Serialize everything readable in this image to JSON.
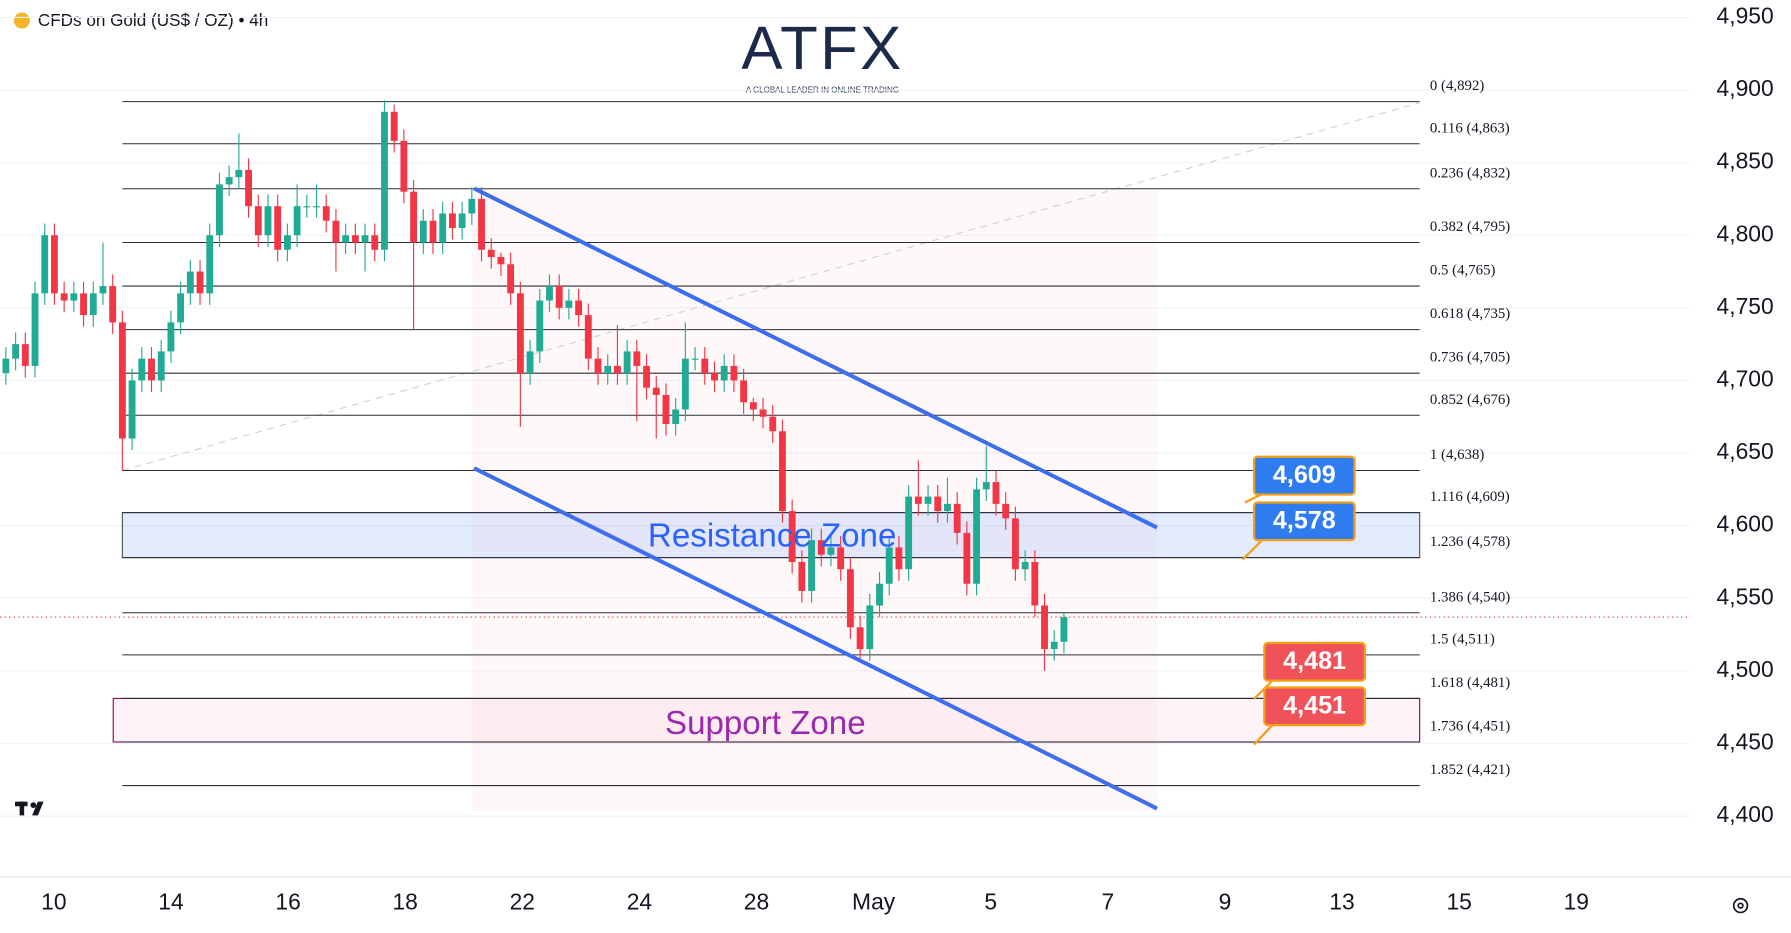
{
  "chart_data": {
    "type": "candlestick",
    "title": "CFDs on Gold (US$ / OZ) • 4h",
    "logo": "ATFX",
    "logo_tagline": "A GLOBAL LEADER IN ONLINE TRADING",
    "up_color": "#22ab94",
    "down_color": "#f23645",
    "ylim": [
      4358,
      4962
    ],
    "yticks": [
      {
        "value": 4950,
        "label": "4,950"
      },
      {
        "value": 4900,
        "label": "4,900"
      },
      {
        "value": 4850,
        "label": "4,850"
      },
      {
        "value": 4800,
        "label": "4,800"
      },
      {
        "value": 4750,
        "label": "4,750"
      },
      {
        "value": 4700,
        "label": "4,700"
      },
      {
        "value": 4650,
        "label": "4,650"
      },
      {
        "value": 4600,
        "label": "4,600"
      },
      {
        "value": 4550,
        "label": "4,550"
      },
      {
        "value": 4500,
        "label": "4,500"
      },
      {
        "value": 4450,
        "label": "4,450"
      },
      {
        "value": 4400,
        "label": "4,400"
      }
    ],
    "xtick_labels": [
      "10",
      "14",
      "16",
      "18",
      "22",
      "24",
      "28",
      "May",
      "5",
      "7",
      "9",
      "13",
      "15",
      "19"
    ],
    "open": [
      4705,
      4715,
      4725,
      4710,
      4760,
      4800,
      4760,
      4755,
      4760,
      4745,
      4760,
      4765,
      4740,
      4660,
      4700,
      4715,
      4700,
      4720,
      4740,
      4760,
      4775,
      4760,
      4800,
      4835,
      4840,
      4845,
      4820,
      4800,
      4820,
      4790,
      4800,
      4820,
      4820,
      4820,
      4810,
      4795,
      4800,
      4795,
      4800,
      4790,
      4885,
      4865,
      4830,
      4795,
      4810,
      4795,
      4815,
      4805,
      4815,
      4825,
      4790,
      4785,
      4780,
      4760,
      4705,
      4720,
      4755,
      4765,
      4750,
      4755,
      4745,
      4715,
      4705,
      4710,
      4705,
      4720,
      4710,
      4695,
      4690,
      4670,
      4680,
      4715,
      4715,
      4705,
      4700,
      4710,
      4700,
      4685,
      4680,
      4675,
      4665,
      4610,
      4575,
      4555,
      4590,
      4580,
      4585,
      4570,
      4530,
      4515,
      4545,
      4560,
      4585,
      4570,
      4620,
      4615,
      4620,
      4610,
      4615,
      4595,
      4560,
      4625,
      4630,
      4615,
      4605,
      4570,
      4575,
      4545,
      4515,
      4520
    ],
    "high": [
      4723,
      4733,
      4733,
      4768,
      4808,
      4808,
      4768,
      4768,
      4768,
      4768,
      4795,
      4773,
      4748,
      4708,
      4723,
      4723,
      4728,
      4748,
      4768,
      4783,
      4783,
      4808,
      4843,
      4848,
      4870,
      4853,
      4828,
      4828,
      4828,
      4808,
      4835,
      4828,
      4835,
      4828,
      4818,
      4808,
      4808,
      4808,
      4808,
      4893,
      4890,
      4873,
      4838,
      4818,
      4818,
      4823,
      4823,
      4823,
      4833,
      4833,
      4798,
      4788,
      4788,
      4768,
      4728,
      4763,
      4773,
      4773,
      4763,
      4763,
      4753,
      4723,
      4718,
      4738,
      4728,
      4728,
      4718,
      4703,
      4698,
      4688,
      4740,
      4723,
      4723,
      4713,
      4718,
      4718,
      4708,
      4688,
      4688,
      4683,
      4673,
      4618,
      4583,
      4598,
      4598,
      4593,
      4593,
      4578,
      4538,
      4553,
      4568,
      4593,
      4593,
      4628,
      4645,
      4628,
      4628,
      4633,
      4623,
      4603,
      4633,
      4655,
      4638,
      4623,
      4613,
      4583,
      4583,
      4553,
      4528,
      4540
    ],
    "low": [
      4697,
      4707,
      4702,
      4702,
      4752,
      4752,
      4747,
      4747,
      4737,
      4737,
      4752,
      4732,
      4638,
      4652,
      4692,
      4692,
      4692,
      4712,
      4732,
      4752,
      4752,
      4752,
      4792,
      4827,
      4832,
      4812,
      4792,
      4792,
      4782,
      4782,
      4792,
      4812,
      4812,
      4802,
      4775,
      4787,
      4787,
      4775,
      4782,
      4782,
      4857,
      4822,
      4735,
      4787,
      4787,
      4787,
      4797,
      4797,
      4807,
      4782,
      4777,
      4772,
      4752,
      4668,
      4697,
      4712,
      4747,
      4742,
      4742,
      4737,
      4707,
      4697,
      4697,
      4697,
      4697,
      4672,
      4687,
      4660,
      4662,
      4662,
      4672,
      4707,
      4697,
      4692,
      4692,
      4692,
      4677,
      4672,
      4667,
      4657,
      4602,
      4567,
      4547,
      4547,
      4572,
      4572,
      4562,
      4522,
      4507,
      4507,
      4537,
      4552,
      4562,
      4562,
      4607,
      4607,
      4602,
      4602,
      4587,
      4552,
      4552,
      4617,
      4607,
      4597,
      4562,
      4562,
      4537,
      4500,
      4507,
      4512
    ],
    "close": [
      4715,
      4725,
      4710,
      4760,
      4800,
      4760,
      4755,
      4760,
      4745,
      4760,
      4765,
      4740,
      4660,
      4700,
      4715,
      4700,
      4720,
      4740,
      4760,
      4775,
      4760,
      4800,
      4835,
      4840,
      4845,
      4820,
      4800,
      4820,
      4790,
      4800,
      4820,
      4820,
      4820,
      4810,
      4795,
      4800,
      4795,
      4800,
      4790,
      4885,
      4865,
      4830,
      4795,
      4810,
      4795,
      4815,
      4805,
      4815,
      4825,
      4790,
      4785,
      4780,
      4760,
      4705,
      4720,
      4755,
      4765,
      4750,
      4755,
      4745,
      4715,
      4705,
      4710,
      4705,
      4720,
      4710,
      4695,
      4690,
      4670,
      4680,
      4715,
      4715,
      4705,
      4700,
      4710,
      4700,
      4685,
      4680,
      4675,
      4665,
      4610,
      4575,
      4555,
      4590,
      4580,
      4585,
      4570,
      4530,
      4515,
      4545,
      4560,
      4585,
      4570,
      4620,
      4615,
      4620,
      4610,
      4615,
      4595,
      4560,
      4625,
      4630,
      4615,
      4605,
      4570,
      4575,
      4545,
      4515,
      4520,
      4537
    ],
    "fib_levels": [
      {
        "value": 4892,
        "label": "0 (4,892)"
      },
      {
        "value": 4863,
        "label": "0.116 (4,863)"
      },
      {
        "value": 4832,
        "label": "0.236 (4,832)"
      },
      {
        "value": 4795,
        "label": "0.382 (4,795)"
      },
      {
        "value": 4765,
        "label": "0.5 (4,765)"
      },
      {
        "value": 4735,
        "label": "0.618 (4,735)"
      },
      {
        "value": 4705,
        "label": "0.736 (4,705)"
      },
      {
        "value": 4676,
        "label": "0.852 (4,676)"
      },
      {
        "value": 4638,
        "label": "1 (4,638)"
      },
      {
        "value": 4609,
        "label": "1.116 (4,609)"
      },
      {
        "value": 4578,
        "label": "1.236 (4,578)"
      },
      {
        "value": 4540,
        "label": "1.386 (4,540)"
      },
      {
        "value": 4511,
        "label": "1.5 (4,511)"
      },
      {
        "value": 4481,
        "label": "1.618 (4,481)"
      },
      {
        "value": 4451,
        "label": "1.736 (4,451)"
      },
      {
        "value": 4421,
        "label": "1.852 (4,421)"
      }
    ],
    "zones": [
      {
        "name": "Resistance Zone",
        "from": 4578,
        "to": 4609,
        "color": "#2962ff"
      },
      {
        "name": "Support Zone",
        "from": 4451,
        "to": 4481,
        "color": "#9c27b0"
      }
    ],
    "price_tags": [
      {
        "value": 4609,
        "label": "4,609",
        "color": "#2f7bf0"
      },
      {
        "value": 4578,
        "label": "4,578",
        "color": "#2f7bf0"
      },
      {
        "value": 4481,
        "label": "4,481",
        "color": "#f0525a"
      },
      {
        "value": 4451,
        "label": "4,451",
        "color": "#f0525a"
      }
    ]
  }
}
